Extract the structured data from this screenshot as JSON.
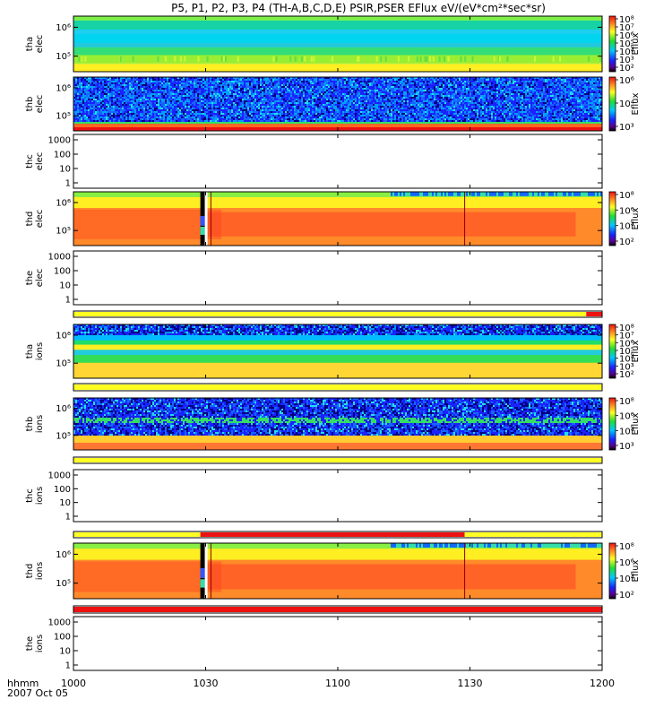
{
  "title": "P5, P1, P2, P3, P4 (TH-A,B,C,D,E) PSIR,PSER EFlux eV/(eV*cm²*sec*sr)",
  "chart_data": {
    "type": "heatmap",
    "x_ticks": [
      "1000",
      "1030",
      "1100",
      "1130",
      "1200"
    ],
    "x_range": [
      "10:00",
      "12:00"
    ],
    "x_axis_label": "hhmm",
    "date_label": "2007 Oct 05",
    "colors": {
      "red": "#ee1111",
      "yellow": "#ffff22",
      "green": "#33dd33",
      "blue": "#2244ff"
    },
    "panels": [
      {
        "id": "tha-elec",
        "ylabel": [
          "tha",
          "elec"
        ],
        "has_data": true,
        "y_ticks": [
          "10⁶",
          "10⁵"
        ],
        "colorbar": {
          "label": "Eflux",
          "ticks": [
            "10⁸",
            "10⁷",
            "10⁶",
            "10⁵",
            "10⁴",
            "10³",
            "10²"
          ]
        },
        "pattern": "uniform-bands"
      },
      {
        "id": "thb-elec",
        "ylabel": [
          "thb",
          "elec"
        ],
        "has_data": true,
        "y_ticks": [
          "10⁶",
          "10⁵"
        ],
        "colorbar": {
          "label": "Eflux",
          "ticks": [
            "10⁶",
            "10⁴",
            "10³"
          ]
        },
        "pattern": "noisy-blue"
      },
      {
        "id": "thc-elec",
        "ylabel": [
          "thc",
          "elec"
        ],
        "has_data": false,
        "y_ticks": [
          "1000",
          "100",
          "10",
          "1"
        ]
      },
      {
        "id": "thd-elec",
        "ylabel": [
          "thd",
          "elec"
        ],
        "has_data": true,
        "y_ticks": [
          "10⁶",
          "10⁵"
        ],
        "colorbar": {
          "label": "Eflux",
          "ticks": [
            "10⁸",
            "10⁶",
            "10⁴",
            "10²"
          ]
        },
        "pattern": "intense-red"
      },
      {
        "id": "the-elec",
        "ylabel": [
          "the",
          "elec"
        ],
        "has_data": false,
        "y_ticks": [
          "1000",
          "100",
          "10",
          "1"
        ],
        "mode_bar": [
          {
            "from": 0,
            "to": 0.97,
            "color": "yellow"
          },
          {
            "from": 0.97,
            "to": 1,
            "color": "red"
          }
        ]
      },
      {
        "id": "tha-ions",
        "ylabel": [
          "tha",
          "ions"
        ],
        "has_data": true,
        "y_ticks": [
          "10⁶",
          "10⁵"
        ],
        "colorbar": {
          "label": "Eflux",
          "ticks": [
            "10⁸",
            "10⁷",
            "10⁶",
            "10⁵",
            "10⁴",
            "10³",
            "10²"
          ]
        },
        "pattern": "ion-bands",
        "mode_bar": [
          {
            "from": 0,
            "to": 1,
            "color": "yellow"
          }
        ]
      },
      {
        "id": "thb-ions",
        "ylabel": [
          "thb",
          "ions"
        ],
        "has_data": true,
        "y_ticks": [
          "10⁶",
          "10⁵"
        ],
        "colorbar": {
          "label": "Eflux",
          "ticks": [
            "10⁸",
            "10⁶",
            "10⁴",
            "10³"
          ]
        },
        "pattern": "noisy-ion",
        "mode_bar": [
          {
            "from": 0,
            "to": 1,
            "color": "yellow"
          }
        ]
      },
      {
        "id": "thc-ions",
        "ylabel": [
          "thc",
          "ions"
        ],
        "has_data": false,
        "y_ticks": [
          "1000",
          "100",
          "10",
          "1"
        ],
        "mode_bar": [
          {
            "from": 0,
            "to": 0.24,
            "color": "yellow"
          },
          {
            "from": 0.24,
            "to": 0.74,
            "color": "red"
          },
          {
            "from": 0.74,
            "to": 1,
            "color": "yellow"
          }
        ]
      },
      {
        "id": "thd-ions",
        "ylabel": [
          "thd",
          "ions"
        ],
        "has_data": true,
        "y_ticks": [
          "10⁶",
          "10⁵"
        ],
        "colorbar": {
          "label": "Eflux",
          "ticks": [
            "10⁸",
            "10⁶",
            "10⁴",
            "10²"
          ]
        },
        "pattern": "intense-red",
        "mode_bar": [
          {
            "from": 0,
            "to": 1,
            "color": "red"
          }
        ]
      },
      {
        "id": "the-ions",
        "ylabel": [
          "the",
          "ions"
        ],
        "has_data": false,
        "y_ticks": [
          "1000",
          "100",
          "10",
          "1"
        ]
      }
    ]
  }
}
